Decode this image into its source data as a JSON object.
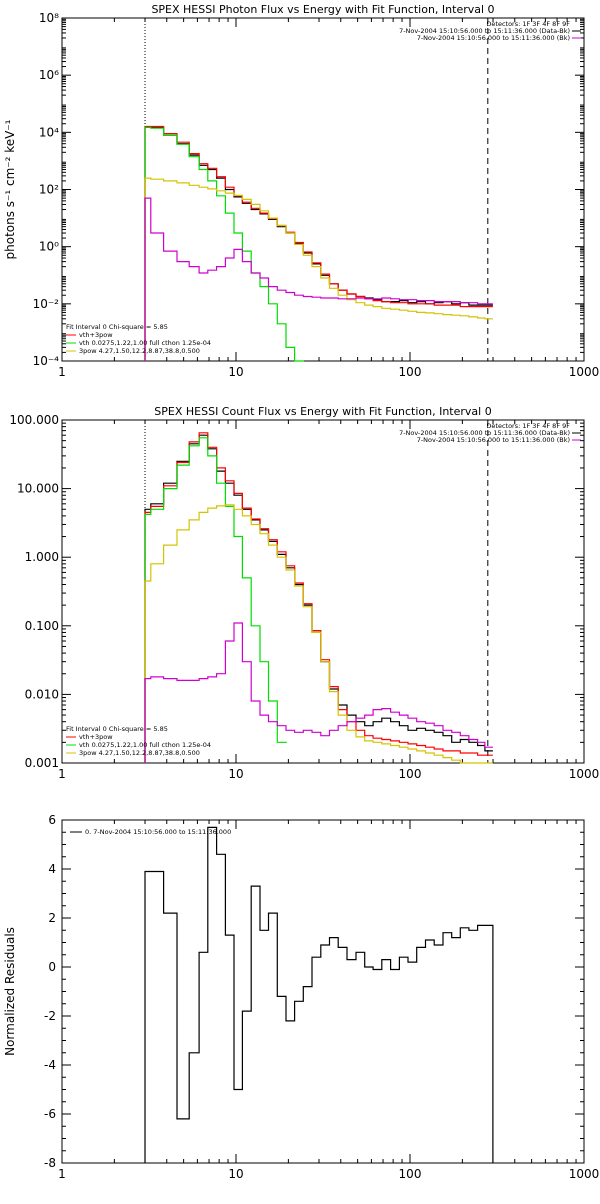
{
  "chart_data": [
    {
      "type": "line",
      "title": "SPEX HESSI Photon Flux vs Energy with Fit Function, Interval 0",
      "ylabel": "photons s⁻¹ cm⁻² keV⁻¹",
      "xlabel": "",
      "x_scale": "log",
      "y_scale": "log",
      "xlim": [
        1,
        1000
      ],
      "ylim": [
        0.0001,
        100000000
      ],
      "xticks": [
        "1",
        "10",
        "100",
        "1000"
      ],
      "yticks": [
        "10⁻⁴",
        "10⁻²",
        "10⁰",
        "10²",
        "10⁴",
        "10⁶",
        "10⁸"
      ],
      "legend_top": [
        "Detectors: 1F 3F 4F 8F 9F",
        "7-Nov-2004 15:10:56.000 to 15:11:36.000 (Data-Bk)",
        "7-Nov-2004 15:10:56.000 to 15:11:36.000 (Bk)"
      ],
      "legend_bottom": [
        "Fit Interval  0    Chi-square = 5.85",
        "vth+3pow",
        "vth 0.0275,1.22,1.00  full cthon 1.25e-04",
        "3pow 4.27,1.50,12.2,8.87,38.8,0.500"
      ],
      "vlines": [
        3,
        280
      ],
      "series": [
        {
          "name": "Data-Bk",
          "color": "#000000",
          "x": [
            3,
            3.5,
            4.2,
            5,
            5.8,
            6.5,
            7.3,
            8.2,
            9.2,
            10.3,
            11.5,
            13,
            14.5,
            16.3,
            18.3,
            20.5,
            23,
            25.8,
            29,
            32.5,
            36.5,
            41,
            46,
            52,
            58,
            65,
            73,
            82,
            92,
            103,
            116,
            130,
            146,
            164,
            184,
            206,
            231,
            259,
            280
          ],
          "values": [
            15000,
            15000,
            8000,
            4000,
            1600,
            700,
            500,
            250,
            100,
            55,
            33,
            20,
            14,
            9,
            5,
            3,
            1.3,
            0.6,
            0.25,
            0.1,
            0.05,
            0.03,
            0.022,
            0.018,
            0.016,
            0.014,
            0.012,
            0.012,
            0.013,
            0.011,
            0.012,
            0.01,
            0.011,
            0.012,
            0.01,
            0.011,
            0.009,
            0.009,
            0.009
          ]
        },
        {
          "name": "vth+3pow",
          "color": "#ff0000",
          "x": [
            3,
            3.5,
            4.2,
            5,
            5.8,
            6.5,
            7.3,
            8.2,
            9.2,
            10.3,
            11.5,
            13,
            14.5,
            16.3,
            18.3,
            20.5,
            23,
            25.8,
            29,
            32.5,
            36.5,
            41,
            46,
            52,
            58,
            65,
            73,
            82,
            92,
            103,
            116,
            130,
            146,
            164,
            184,
            206,
            231,
            259,
            280
          ],
          "values": [
            16000,
            16000,
            9000,
            4500,
            1800,
            800,
            550,
            280,
            120,
            60,
            36,
            22,
            15,
            9.5,
            5.5,
            3.2,
            1.4,
            0.65,
            0.27,
            0.11,
            0.05,
            0.03,
            0.022,
            0.018,
            0.015,
            0.013,
            0.012,
            0.011,
            0.011,
            0.01,
            0.01,
            0.01,
            0.009,
            0.009,
            0.009,
            0.008,
            0.008,
            0.008,
            0.008
          ]
        },
        {
          "name": "vth",
          "color": "#00dd00",
          "x": [
            3,
            3.5,
            4.2,
            5,
            5.8,
            6.5,
            7.3,
            8.2,
            9.2,
            10.3,
            11.5,
            13,
            14.5,
            16.3,
            18.3,
            20.5,
            23
          ],
          "values": [
            15000,
            14000,
            8000,
            3800,
            1400,
            500,
            200,
            60,
            15,
            3,
            0.7,
            0.12,
            0.04,
            0.01,
            0.002,
            0.0003,
            5e-05
          ]
        },
        {
          "name": "3pow",
          "color": "#d4c400",
          "x": [
            3,
            3.5,
            4.2,
            5,
            5.8,
            6.5,
            7.3,
            8.2,
            9.2,
            10.3,
            11.5,
            13,
            14.5,
            16.3,
            18.3,
            20.5,
            23,
            25.8,
            29,
            32.5,
            36.5,
            41,
            46,
            52,
            58,
            65,
            73,
            82,
            92,
            103,
            116,
            130,
            146,
            164,
            184,
            206,
            231,
            259,
            280
          ],
          "values": [
            250,
            230,
            200,
            170,
            140,
            120,
            105,
            90,
            75,
            62,
            45,
            30,
            18,
            10,
            5.5,
            3,
            1.2,
            0.5,
            0.2,
            0.08,
            0.035,
            0.02,
            0.014,
            0.011,
            0.009,
            0.008,
            0.007,
            0.0065,
            0.006,
            0.0055,
            0.005,
            0.0048,
            0.0045,
            0.0042,
            0.004,
            0.0038,
            0.0035,
            0.0032,
            0.003
          ]
        },
        {
          "name": "Bk",
          "color": "#d000d0",
          "x": [
            3,
            3.5,
            4.2,
            5,
            5.8,
            6.5,
            7.3,
            8.2,
            9.2,
            10.3,
            11.5,
            13,
            14.5,
            16.3,
            18.3,
            20.5,
            23,
            25.8,
            29,
            32.5,
            36.5,
            41,
            46,
            52,
            58,
            65,
            73,
            82,
            92,
            103,
            116,
            130,
            146,
            164,
            184,
            206,
            231,
            259,
            280
          ],
          "values": [
            50,
            3,
            0.7,
            0.3,
            0.2,
            0.12,
            0.15,
            0.2,
            0.4,
            0.8,
            0.3,
            0.12,
            0.08,
            0.04,
            0.03,
            0.025,
            0.02,
            0.018,
            0.017,
            0.016,
            0.016,
            0.015,
            0.015,
            0.016,
            0.015,
            0.015,
            0.016,
            0.015,
            0.014,
            0.014,
            0.013,
            0.013,
            0.012,
            0.012,
            0.012,
            0.011,
            0.011,
            0.01,
            0.01
          ]
        }
      ]
    },
    {
      "type": "line",
      "title": "SPEX HESSI Count Flux vs Energy with Fit Function, Interval 0",
      "ylabel": "",
      "xlabel": "",
      "x_scale": "log",
      "y_scale": "log",
      "xlim": [
        1,
        1000
      ],
      "ylim": [
        0.001,
        100
      ],
      "xticks": [
        "1",
        "10",
        "100",
        "1000"
      ],
      "yticks": [
        "0.001",
        "0.010",
        "0.100",
        "1.000",
        "10.000",
        "100.000"
      ],
      "legend_top": [
        "Detectors: 1F 3F 4F 8F 9F",
        "7-Nov-2004 15:10:56.000 to 15:11:36.000 (Data-Bk)",
        "7-Nov-2004 15:10:56.000 to 15:11:36.000 (Bk)"
      ],
      "legend_bottom": [
        "Fit Interval  0    Chi-square = 5.85",
        "vth+3pow",
        "vth 0.0275,1.22,1.00  full cthon 1.25e-04",
        "3pow 4.27,1.50,12.2,8.87,38.8,0.500"
      ],
      "vlines": [
        3,
        280
      ],
      "series": [
        {
          "name": "Data-Bk",
          "color": "#000000",
          "x": [
            3,
            3.5,
            4.2,
            5,
            5.8,
            6.5,
            7.3,
            8.2,
            9.2,
            10.3,
            11.5,
            13,
            14.5,
            16.3,
            18.3,
            20.5,
            23,
            25.8,
            29,
            32.5,
            36.5,
            41,
            46,
            52,
            58,
            65,
            73,
            82,
            92,
            103,
            116,
            130,
            146,
            164,
            184,
            206,
            231,
            259,
            280
          ],
          "values": [
            5,
            6,
            12,
            25,
            45,
            60,
            38,
            18,
            12,
            8,
            5,
            3.5,
            2.5,
            1.7,
            1.1,
            0.7,
            0.4,
            0.2,
            0.08,
            0.03,
            0.012,
            0.007,
            0.005,
            0.004,
            0.0035,
            0.004,
            0.0045,
            0.004,
            0.0035,
            0.003,
            0.0032,
            0.003,
            0.0028,
            0.0025,
            0.002,
            0.0022,
            0.002,
            0.0018,
            0.0015
          ]
        },
        {
          "name": "vth+3pow",
          "color": "#ff0000",
          "x": [
            3,
            3.5,
            4.2,
            5,
            5.8,
            6.5,
            7.3,
            8.2,
            9.2,
            10.3,
            11.5,
            13,
            14.5,
            16.3,
            18.3,
            20.5,
            23,
            25.8,
            29,
            32.5,
            36.5,
            41,
            46,
            52,
            58,
            65,
            73,
            82,
            92,
            103,
            116,
            130,
            146,
            164,
            184,
            206,
            231,
            259,
            280
          ],
          "values": [
            4.5,
            5.5,
            11,
            24,
            48,
            65,
            40,
            20,
            13,
            8.5,
            5.2,
            3.6,
            2.6,
            1.8,
            1.2,
            0.75,
            0.42,
            0.21,
            0.085,
            0.032,
            0.013,
            0.006,
            0.004,
            0.003,
            0.0025,
            0.0023,
            0.0022,
            0.0021,
            0.002,
            0.0019,
            0.0018,
            0.0017,
            0.0016,
            0.0015,
            0.0015,
            0.0014,
            0.0014,
            0.0013,
            0.0013
          ]
        },
        {
          "name": "vth",
          "color": "#00dd00",
          "x": [
            3,
            3.5,
            4.2,
            5,
            5.8,
            6.5,
            7.3,
            8.2,
            9.2,
            10.3,
            11.5,
            13,
            14.5,
            16.3,
            18.3
          ],
          "values": [
            4.2,
            5,
            10,
            22,
            42,
            55,
            30,
            12,
            5.5,
            2,
            0.5,
            0.1,
            0.03,
            0.008,
            0.002
          ]
        },
        {
          "name": "3pow",
          "color": "#d4c400",
          "x": [
            3,
            3.5,
            4.2,
            5,
            5.8,
            6.5,
            7.3,
            8.2,
            9.2,
            10.3,
            11.5,
            13,
            14.5,
            16.3,
            18.3,
            20.5,
            23,
            25.8,
            29,
            32.5,
            36.5,
            41,
            46,
            52,
            58,
            65,
            73,
            82,
            92,
            103,
            116,
            130,
            146,
            164,
            184,
            206,
            231,
            259,
            280
          ],
          "values": [
            0.45,
            0.8,
            1.5,
            2.5,
            3.5,
            4.5,
            5.2,
            5.6,
            5.8,
            5,
            4,
            3,
            2.2,
            1.5,
            1,
            0.65,
            0.38,
            0.19,
            0.08,
            0.03,
            0.011,
            0.005,
            0.003,
            0.0024,
            0.0021,
            0.002,
            0.0019,
            0.0018,
            0.0017,
            0.0016,
            0.0015,
            0.0014,
            0.0013,
            0.0012,
            0.0011,
            0.001,
            0.0009,
            0.00085,
            0.0008
          ]
        },
        {
          "name": "Bk",
          "color": "#d000d0",
          "x": [
            3,
            3.5,
            4.2,
            5,
            5.8,
            6.5,
            7.3,
            8.2,
            9.2,
            10.3,
            11.5,
            13,
            14.5,
            16.3,
            18.3,
            20.5,
            23,
            25.8,
            29,
            32.5,
            36.5,
            41,
            46,
            52,
            58,
            65,
            73,
            82,
            92,
            103,
            116,
            130,
            146,
            164,
            184,
            206,
            231,
            259,
            280
          ],
          "values": [
            0.017,
            0.018,
            0.017,
            0.016,
            0.016,
            0.017,
            0.018,
            0.02,
            0.06,
            0.11,
            0.03,
            0.008,
            0.005,
            0.004,
            0.0035,
            0.003,
            0.0028,
            0.003,
            0.0028,
            0.0025,
            0.003,
            0.0035,
            0.004,
            0.0045,
            0.005,
            0.006,
            0.0062,
            0.0055,
            0.005,
            0.0045,
            0.004,
            0.0038,
            0.0035,
            0.003,
            0.0028,
            0.0025,
            0.0022,
            0.002,
            0.0017
          ]
        }
      ]
    },
    {
      "type": "line",
      "title": "",
      "ylabel": "Normalized Residuals",
      "xlabel": "",
      "x_scale": "log",
      "y_scale": "linear",
      "xlim": [
        1,
        1000
      ],
      "ylim": [
        -8,
        6
      ],
      "xticks": [
        "1",
        "10",
        "100",
        "1000"
      ],
      "yticks": [
        "-8",
        "-6",
        "-4",
        "-2",
        "0",
        "2",
        "4",
        "6"
      ],
      "legend_top": [
        "0.  7-Nov-2004 15:10:56.000 to 15:11:36.000"
      ],
      "series": [
        {
          "name": "0.  7-Nov-2004 15:10:56.000 to 15:11:36.000",
          "color": "#000000",
          "x": [
            3,
            3.5,
            4.2,
            5,
            5.8,
            6.5,
            7.3,
            8.2,
            9.2,
            10.3,
            11.5,
            13,
            14.5,
            16.3,
            18.3,
            20.5,
            23,
            25.8,
            29,
            32.5,
            36.5,
            41,
            46,
            52,
            58,
            65,
            73,
            82,
            92,
            103,
            116,
            130,
            146,
            164,
            184,
            206,
            231,
            259,
            280
          ],
          "values": [
            3.9,
            3.9,
            2.2,
            -6.2,
            -3.5,
            0.6,
            5.7,
            4.6,
            1.3,
            -5,
            -1.8,
            3.3,
            1.5,
            2.2,
            -1.2,
            -2.2,
            -1.4,
            -0.8,
            0.4,
            0.9,
            1.2,
            0.8,
            0.3,
            0.6,
            0.0,
            -0.1,
            0.3,
            -0.1,
            0.4,
            0.2,
            0.8,
            1.1,
            0.9,
            1.4,
            1.2,
            1.6,
            1.5,
            1.7,
            1.7
          ]
        }
      ]
    }
  ]
}
